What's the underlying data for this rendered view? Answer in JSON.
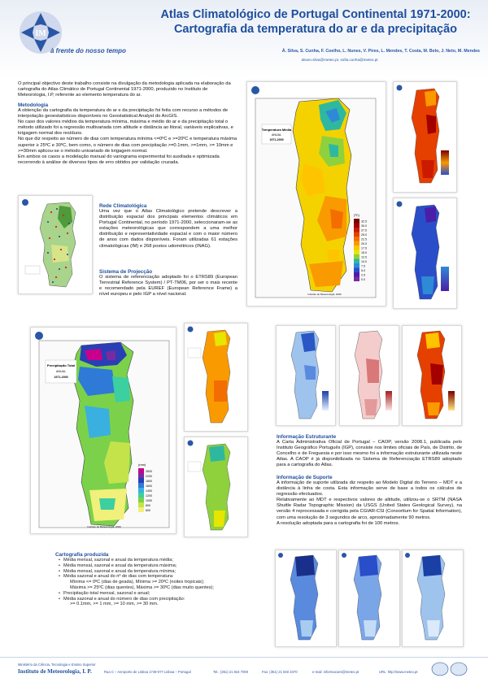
{
  "header": {
    "title_line1": "Atlas Climatológico de Portugal Continental 1971-2000:",
    "title_line2": "Cartografia da temperatura do ar e da precipitação",
    "tagline": "à frente do nosso tempo",
    "authors": "Á. Silva, S. Cunha, F. Coelho, L. Nunes, V. Pires, L. Mendes, T. Costa, M. Belo, J. Neto, M. Mendes",
    "emails": "alvaro.silva@meteo.pt, sofia.cunha@meteo.pt"
  },
  "intro": "O principal objectivo deste trabalho consiste na divulgação da metodologia aplicada na elaboração da cartografia do Atlas Climático de Portugal Continental 1971-2000, produzido no Instituto de Meteorologia, I.P, referente ao elemento temperatura do ar.",
  "metodologia": {
    "heading": "Metodologia",
    "p1": "A obtenção da cartografia da temperatura do ar e da precipitação foi feita com recurso a métodos de interpolação geoestatísticos disponíveis no Geostatistical Analyst do ArcGIS.",
    "p2": "No caso dos valores médios da temperatura mínima, máxima e médio do ar e da precipitação total o método utilizado foi a regressão multivariada com altitude e distância ao litoral, variáveis explicativas, e krigagem normal dos resíduos.",
    "p3": "No que diz respeito ao número de dias com temperatura mínima <=0ºC e >=20ºC e temperatura máxima superior ≥ 25ºC e 30ºC, bem como, o número de dias com precipitação >=0.1mm, >=1mm, >= 10mm e >=30mm aplicou-se o método univariado de krigagem normal.",
    "p4": "Em ambos os casos a modelação manual do variograma experimental foi auxiliada e optimizada recorrendo à análise de diversos tipos de erro obtidos por validação cruzada."
  },
  "rede": {
    "heading": "Rede Climatológica",
    "text": "Uma vez que o Atlas Climatológico pretende descrever a distribuição espacial dos principais elementos climáticos em Portugal Continental, no período 1971-2000, seleccionaram-se as estações meteorológicas que correspondem a uma melhor distribuição e representatividade espacial e com o maior número de anos com dados disponíveis. Foram utilizadas 61 estações climatológicas (IM) e 268 postos udométricos (INAG)."
  },
  "projeccao": {
    "heading": "Sistema de Projecção",
    "text": "O sistema de referenciação adoptado foi o ETRS89 (European Terrestrial Reference System) / PT-TM06, por ser o mais recente e recomendado pela EUREF (European Reference Frame) a nível europeu e pelo IGP a nível nacional."
  },
  "estruturante": {
    "heading": "Informação Estruturante",
    "text": "A Carta Administrativa Oficial de Portugal – CAOP, versão 2008.1, publicada pelo Instituto Geográfico Português (IGP), consiste nos limites oficiais de País, de Distrito, de Concelho e de Freguesia e por isso mesmo foi a informação estruturante utilizada neste Atlas. A CAOP é já disponibilizada no Sistema de Referenciação ETRS89 adoptado para a cartografia do Atlas."
  },
  "suporte": {
    "heading": "Informação de Suporte",
    "p1": "A informação de suporte utilizada diz respeito ao Modelo Digital do Terreno – MDT e a distância à linha de costa. Esta informação serve de base a todos os cálculos de regressão efectuados.",
    "p2": "Relativamente ao MDT e respectivos valores de altitude, utilizou-se o SRTM (NASA Shuttle Radar Topographic Mission) da USGS (United States Geological Survey), na versão 4 reprocessada e corrigida pela CGIAR-CSI (Consortium for Spatial Information), com uma resolução de 3 segundos de arco, aproximadamente 90 metros.",
    "p3": "A resolução adoptada para a cartografia foi de 100 metros."
  },
  "cartografia": {
    "heading": "Cartografia produzida",
    "items": [
      "Média mensal, sazonal e anual da temperatura média;",
      "Média mensal, sazonal e anual da temperatura máxima;",
      "Média mensal, sazonal e anual da temperatura mínima;",
      "Média sazonal e anual do nº de dias com temperatura:"
    ],
    "sub1": "Mínima <= 0ºC (dias de geada), Mínima >= 20ºC (noites tropicais);",
    "sub2": "Máxima >= 25ºC (dias quentes), Máxima >= 30ºC (dias muito quentes);",
    "items2": [
      "Precipitação total mensal, sazonal e anual;",
      "Média sazonal e anual do número de dias com precipitação:"
    ],
    "sub3": ">= 0.1mm,   >= 1 mm,   >= 10 mm,   >= 30 mm."
  },
  "temp_map": {
    "title": "Temperatura Média",
    "subtitle": "ANUAL",
    "period": "1971-2000",
    "legend_unit": "(ºC)",
    "legend_values": [
      "32.5",
      "30.0",
      "27.5",
      "25.0",
      "22.5",
      "20.0",
      "17.5",
      "15.0",
      "12.5",
      "10.0",
      "7.5",
      "5.0",
      "2.5",
      "0.0"
    ],
    "legend_colors": [
      "#7a0000",
      "#a30000",
      "#cc1a00",
      "#e64000",
      "#f46d00",
      "#f99a00",
      "#ffc400",
      "#e6e600",
      "#8fd13d",
      "#2fb8a0",
      "#2e8ad6",
      "#2a4ec9",
      "#4b1ea8",
      "#7a2aa0"
    ],
    "credit": "Instituto de Meteorologia, 2009"
  },
  "precip_map": {
    "title": "Precipitação Total",
    "subtitle": "ANUAL",
    "period": "1971-2000",
    "legend_unit": "(mm)",
    "legend_values": [
      "2600",
      "2200",
      "1800",
      "1600",
      "1400",
      "1200",
      "1000",
      "800",
      "600"
    ],
    "legend_colors": [
      "#c8008c",
      "#7a2aa0",
      "#2a3fb5",
      "#2e7ad6",
      "#3ab0e0",
      "#3ccfa0",
      "#7bd24a",
      "#c4e34a",
      "#f0f07a"
    ],
    "credit": "Instituto de Meteorologia, 2009"
  },
  "footer": {
    "ministry": "Ministério da Ciência, Tecnologia e Ensino Superior",
    "institute": "Instituto de Meteorologia, I. P.",
    "address": "Rua C – Aeroporto de Lisboa 1749-077 Lisboa – Portugal",
    "tel": "Tel.: (351) 21 844 7000",
    "fax": "Fax: (351) 21 840 2370",
    "email": "e-mail: informacoes@meteo.pt",
    "url": "URL: http://www.meteo.pt"
  }
}
